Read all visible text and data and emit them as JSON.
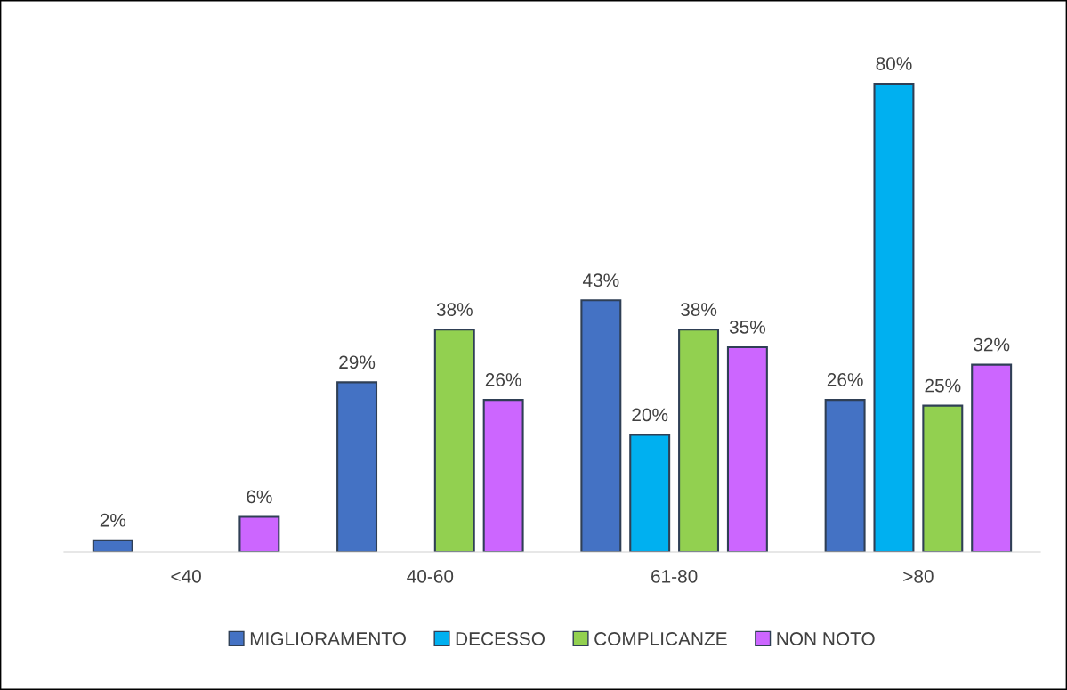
{
  "chart_data": {
    "type": "bar",
    "categories": [
      "<40",
      "40-60",
      "61-80",
      ">80"
    ],
    "series": [
      {
        "name": "MIGLIORAMENTO",
        "color": "#4472c4",
        "values": [
          2,
          29,
          43,
          26
        ],
        "value_labels": [
          "2%",
          "29%",
          "43%",
          "26%"
        ]
      },
      {
        "name": "DECESSO",
        "color": "#00b0f0",
        "values": [
          null,
          null,
          20,
          80
        ],
        "value_labels": [
          null,
          null,
          "20%",
          "80%"
        ]
      },
      {
        "name": "COMPLICANZE",
        "color": "#92d050",
        "values": [
          null,
          38,
          38,
          25
        ],
        "value_labels": [
          null,
          "38%",
          "38%",
          "25%"
        ]
      },
      {
        "name": "NON NOTO",
        "color": "#cc66ff",
        "values": [
          6,
          26,
          35,
          32
        ],
        "value_labels": [
          "6%",
          "26%",
          "35%",
          "32%"
        ]
      }
    ],
    "legend": "bottom",
    "grid": false
  }
}
